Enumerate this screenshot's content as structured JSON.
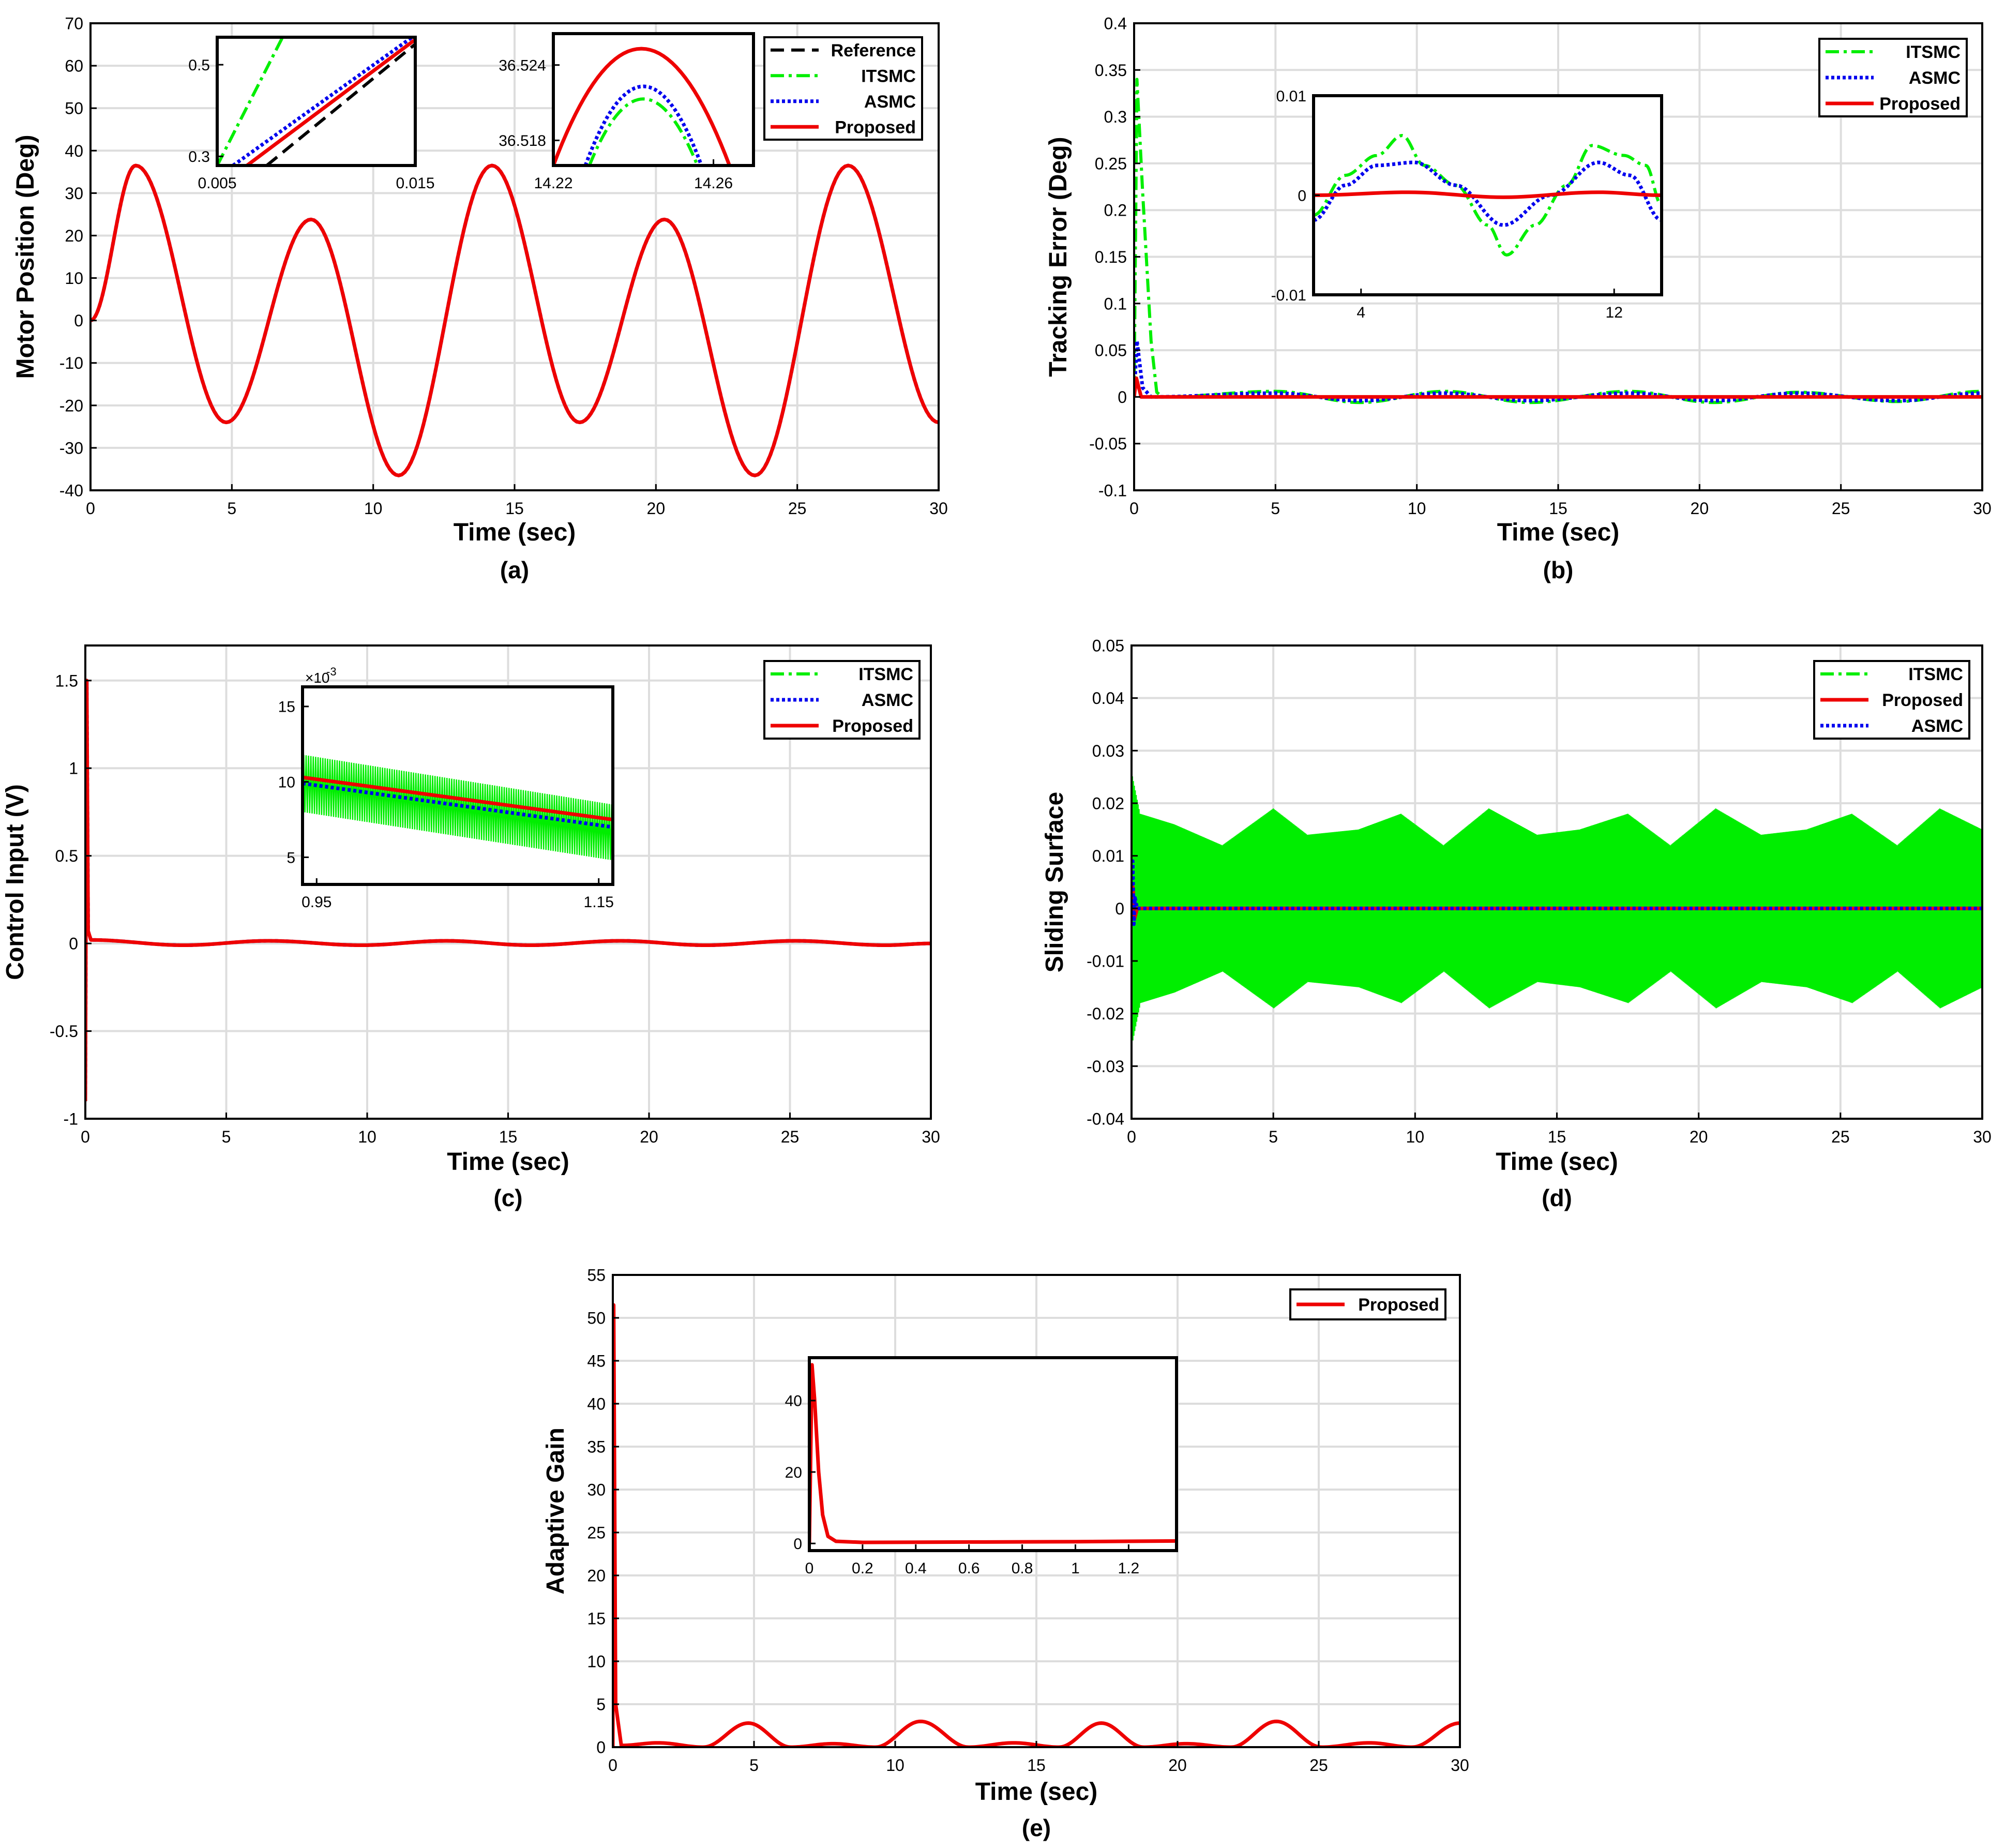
{
  "colors": {
    "reference": "#000000",
    "itsmc": "#00ee00",
    "asmc": "#0000ee",
    "proposed": "#ee0000",
    "grid": "#dddddd",
    "axes": "#000000"
  },
  "chart_data": [
    {
      "id": "a",
      "type": "line",
      "caption": "(a)",
      "xlabel": "Time (sec)",
      "ylabel": "Motor Position (Deg)",
      "xlim": [
        0,
        30
      ],
      "ylim": [
        -40,
        70
      ],
      "xticks": [
        "0",
        "5",
        "10",
        "15",
        "20",
        "25",
        "30"
      ],
      "yticks": [
        "-40",
        "-30",
        "-20",
        "-10",
        "0",
        "10",
        "20",
        "30",
        "40",
        "50",
        "60",
        "70"
      ],
      "grid": true,
      "legend_position": "top-right",
      "legend": [
        "Reference",
        "ITSMC",
        "ASMC",
        "Proposed"
      ],
      "series": [
        {
          "name": "Reference",
          "style": "dashed",
          "x": [
            0,
            1.6,
            4.8,
            7.8,
            10.9,
            14.2,
            17.3,
            20.3,
            23.5,
            26.8,
            30
          ],
          "y": [
            0,
            36.5,
            -24,
            23.8,
            -36.5,
            36.5,
            -24,
            23.8,
            -36.5,
            36.5,
            -24
          ]
        },
        {
          "name": "ITSMC",
          "style": "dashdot",
          "x": [
            0,
            1.6,
            4.8,
            7.8,
            10.9,
            14.2,
            17.3,
            20.3,
            23.5,
            26.8,
            30
          ],
          "y": [
            0,
            36.5,
            -24,
            23.8,
            -36.5,
            36.5,
            -24,
            23.8,
            -36.5,
            36.5,
            -24
          ]
        },
        {
          "name": "ASMC",
          "style": "dotted",
          "x": [
            0,
            1.6,
            4.8,
            7.8,
            10.9,
            14.2,
            17.3,
            20.3,
            23.5,
            26.8,
            30
          ],
          "y": [
            0,
            36.5,
            -24,
            23.8,
            -36.5,
            36.5,
            -24,
            23.8,
            -36.5,
            36.5,
            -24
          ]
        },
        {
          "name": "Proposed",
          "style": "solid",
          "x": [
            0,
            1.6,
            4.8,
            7.8,
            10.9,
            14.2,
            17.3,
            20.3,
            23.5,
            26.8,
            30
          ],
          "y": [
            0,
            36.5,
            -24,
            23.8,
            -36.5,
            36.5,
            -24,
            23.8,
            -36.5,
            36.5,
            -24
          ]
        }
      ],
      "insets": [
        {
          "xlim": [
            0.005,
            0.015
          ],
          "ylim": [
            0.28,
            0.56
          ],
          "xticks": [
            "0.005",
            "0.015"
          ],
          "yticks": [
            "0.3",
            "0.5"
          ],
          "series": [
            {
              "name": "Reference",
              "x": [
                0.0075,
                0.015
              ],
              "y": [
                0.28,
                0.545
              ]
            },
            {
              "name": "ITSMC",
              "x": [
                0.005,
                0.0083
              ],
              "y": [
                0.28,
                0.56
              ]
            },
            {
              "name": "ASMC",
              "x": [
                0.0058,
                0.015
              ],
              "y": [
                0.28,
                0.565
              ]
            },
            {
              "name": "Proposed",
              "x": [
                0.0065,
                0.015
              ],
              "y": [
                0.28,
                0.555
              ]
            }
          ]
        },
        {
          "xlim": [
            14.22,
            14.27
          ],
          "ylim": [
            36.516,
            36.5265
          ],
          "xticks": [
            "14.22",
            "14.26"
          ],
          "yticks": [
            "36.518",
            "36.524"
          ],
          "series": [
            {
              "name": "Reference",
              "x": [
                14.22,
                14.242,
                14.264
              ],
              "y": [
                36.516,
                36.5253,
                36.516
              ]
            },
            {
              "name": "ITSMC",
              "x": [
                14.229,
                14.2425,
                14.256
              ],
              "y": [
                36.516,
                36.5213,
                36.516
              ]
            },
            {
              "name": "ASMC",
              "x": [
                14.228,
                14.2425,
                14.257
              ],
              "y": [
                36.516,
                36.5223,
                36.516
              ]
            },
            {
              "name": "Proposed",
              "x": [
                14.22,
                14.242,
                14.264
              ],
              "y": [
                36.516,
                36.5253,
                36.516
              ]
            }
          ]
        }
      ]
    },
    {
      "id": "b",
      "type": "line",
      "caption": "(b)",
      "xlabel": "Time (sec)",
      "ylabel": "Tracking Error (Deg)",
      "xlim": [
        0,
        30
      ],
      "ylim": [
        -0.1,
        0.4
      ],
      "xticks": [
        "0",
        "5",
        "10",
        "15",
        "20",
        "25",
        "30"
      ],
      "yticks": [
        "-0.1",
        "-0.05",
        "0",
        "0.05",
        "0.1",
        "0.15",
        "0.2",
        "0.25",
        "0.3",
        "0.35",
        "0.4"
      ],
      "grid": true,
      "legend_position": "top-right",
      "legend": [
        "ITSMC",
        "ASMC",
        "Proposed"
      ],
      "series": [
        {
          "name": "ITSMC",
          "style": "dashdot",
          "x": [
            0,
            0.1,
            0.3,
            0.6,
            0.8,
            1.0,
            5,
            8,
            11,
            14,
            17.5,
            20.5,
            23.5,
            27,
            30
          ],
          "y": [
            0,
            0.34,
            0.22,
            0.06,
            0.005,
            0,
            0.006,
            -0.006,
            0.006,
            -0.006,
            0.006,
            -0.006,
            0.005,
            -0.005,
            0.006
          ]
        },
        {
          "name": "ASMC",
          "style": "dotted",
          "x": [
            0,
            0.1,
            0.3,
            0.6,
            5,
            8,
            11,
            14,
            17.5,
            20.5,
            23.5,
            27,
            30
          ],
          "y": [
            0,
            0.06,
            0.01,
            0,
            0.004,
            -0.004,
            0.004,
            -0.004,
            0.004,
            -0.004,
            0.004,
            -0.004,
            0.004
          ]
        },
        {
          "name": "Proposed",
          "style": "solid",
          "x": [
            0,
            0.08,
            0.25,
            1,
            30
          ],
          "y": [
            0,
            0.02,
            0,
            0,
            0
          ]
        }
      ],
      "insets": [
        {
          "xlim": [
            2.5,
            13.5
          ],
          "ylim": [
            -0.01,
            0.01
          ],
          "xticks": [
            "4",
            "12"
          ],
          "yticks": [
            "-0.01",
            "0",
            "0.01"
          ],
          "series": [
            {
              "name": "ITSMC",
              "x": [
                2.5,
                3.5,
                4.5,
                5.3,
                6.0,
                7.0,
                8.0,
                8.6,
                9.5,
                10.5,
                11.3,
                12.3,
                13.0,
                13.5
              ],
              "y": [
                -0.002,
                0.002,
                0.004,
                0.006,
                0.003,
                0.001,
                -0.003,
                -0.006,
                -0.003,
                0.001,
                0.005,
                0.004,
                0.003,
                -0.001
              ]
            },
            {
              "name": "ASMC",
              "x": [
                2.5,
                3.5,
                4.5,
                5.7,
                7.0,
                8.5,
                10.0,
                11.5,
                12.5,
                13.5
              ],
              "y": [
                -0.0025,
                0.001,
                0.003,
                0.0033,
                0.001,
                -0.003,
                0.0,
                0.0033,
                0.002,
                -0.0025
              ]
            },
            {
              "name": "Proposed",
              "x": [
                2.5,
                5.5,
                8.5,
                11.5,
                13.5
              ],
              "y": [
                0,
                0.0003,
                -0.0002,
                0.0003,
                0
              ]
            }
          ]
        }
      ]
    },
    {
      "id": "c",
      "type": "line",
      "caption": "(c)",
      "xlabel": "Time (sec)",
      "ylabel": "Control Input (V)",
      "xlim": [
        0,
        30
      ],
      "ylim": [
        -1,
        1.7
      ],
      "xticks": [
        "0",
        "5",
        "10",
        "15",
        "20",
        "25",
        "30"
      ],
      "yticks": [
        "-1",
        "-0.5",
        "0",
        "0.5",
        "1",
        "1.5"
      ],
      "grid": true,
      "legend_position": "top-right",
      "legend": [
        "ITSMC",
        "ASMC",
        "Proposed"
      ],
      "series": [
        {
          "name": "ITSMC",
          "style": "dashdot",
          "x": [
            0,
            0.05,
            0.1,
            0.2,
            3.5,
            6.5,
            9.8,
            12.8,
            15.8,
            19,
            22,
            25.2,
            28.4,
            30
          ],
          "y": [
            -0.9,
            1.5,
            0.07,
            0.02,
            -0.01,
            0.015,
            -0.01,
            0.015,
            -0.01,
            0.015,
            -0.01,
            0.015,
            -0.01,
            0.0
          ]
        },
        {
          "name": "ASMC",
          "style": "dotted",
          "x": [
            0,
            0.05,
            0.1,
            0.2,
            3.5,
            6.5,
            9.8,
            12.8,
            15.8,
            19,
            22,
            25.2,
            28.4,
            30
          ],
          "y": [
            -0.9,
            1.5,
            0.07,
            0.02,
            -0.01,
            0.015,
            -0.01,
            0.015,
            -0.01,
            0.015,
            -0.01,
            0.015,
            -0.01,
            0.0
          ]
        },
        {
          "name": "Proposed",
          "style": "solid",
          "x": [
            0,
            0.05,
            0.1,
            0.2,
            3.5,
            6.5,
            9.8,
            12.8,
            15.8,
            19,
            22,
            25.2,
            28.4,
            30
          ],
          "y": [
            -0.9,
            1.5,
            0.07,
            0.02,
            -0.01,
            0.015,
            -0.01,
            0.015,
            -0.01,
            0.015,
            -0.01,
            0.015,
            -0.01,
            0.0
          ]
        }
      ],
      "insets": [
        {
          "xlim": [
            0.94,
            1.16
          ],
          "ylim": [
            0.0032,
            0.0163
          ],
          "xticks": [
            "0.95",
            "1.15"
          ],
          "yticks": [
            "5",
            "10",
            "15"
          ],
          "multiplier": "×10",
          "multiplier_exp": "-3",
          "itsmc_band": {
            "x": [
              0.94,
              1.16
            ],
            "upper": [
              0.0118,
              0.0085
            ],
            "lower": [
              0.008,
              0.0048
            ]
          },
          "series": [
            {
              "name": "ASMC",
              "x": [
                0.94,
                1.16
              ],
              "y": [
                0.0099,
                0.007
              ]
            },
            {
              "name": "Proposed",
              "x": [
                0.94,
                1.16
              ],
              "y": [
                0.0103,
                0.0075
              ]
            }
          ]
        }
      ]
    },
    {
      "id": "d",
      "type": "line",
      "caption": "(d)",
      "xlabel": "Time (sec)",
      "ylabel": "Sliding Surface",
      "xlim": [
        0,
        30
      ],
      "ylim": [
        -0.04,
        0.05
      ],
      "xticks": [
        "0",
        "5",
        "10",
        "15",
        "20",
        "25",
        "30"
      ],
      "yticks": [
        "-0.04",
        "-0.03",
        "-0.02",
        "-0.01",
        "0",
        "0.01",
        "0.02",
        "0.03",
        "0.04",
        "0.05"
      ],
      "grid": true,
      "legend_position": "top-right",
      "legend": [
        "ITSMC",
        "Proposed",
        "ASMC"
      ],
      "itsmc_envelope": {
        "x": [
          0,
          0.3,
          1.5,
          3.2,
          5,
          6.2,
          8,
          9.5,
          11,
          12.6,
          14.3,
          15.8,
          17.5,
          19,
          20.6,
          22.2,
          23.8,
          25.4,
          27,
          28.5,
          30
        ],
        "upper": [
          0.026,
          0.018,
          0.016,
          0.012,
          0.019,
          0.014,
          0.015,
          0.018,
          0.012,
          0.019,
          0.014,
          0.015,
          0.018,
          0.012,
          0.019,
          0.014,
          0.015,
          0.018,
          0.012,
          0.019,
          0.015
        ],
        "lower": [
          -0.026,
          -0.018,
          -0.016,
          -0.012,
          -0.019,
          -0.014,
          -0.015,
          -0.018,
          -0.012,
          -0.019,
          -0.014,
          -0.015,
          -0.018,
          -0.012,
          -0.019,
          -0.014,
          -0.015,
          -0.018,
          -0.012,
          -0.019,
          -0.015
        ]
      },
      "series": [
        {
          "name": "Proposed",
          "style": "solid",
          "x": [
            0,
            0.05,
            0.1,
            0.2,
            30
          ],
          "y": [
            0,
            0.004,
            -0.002,
            0,
            0
          ]
        },
        {
          "name": "ASMC",
          "style": "dashdot",
          "x": [
            0,
            0.04,
            0.08,
            0.12,
            0.2,
            30
          ],
          "y": [
            0,
            0.009,
            -0.003,
            0.002,
            0,
            0
          ]
        }
      ]
    },
    {
      "id": "e",
      "type": "line",
      "caption": "(e)",
      "xlabel": "Time (sec)",
      "ylabel": "Adaptive Gain",
      "xlim": [
        0,
        30
      ],
      "ylim": [
        0,
        55
      ],
      "xticks": [
        "0",
        "5",
        "10",
        "15",
        "20",
        "25",
        "30"
      ],
      "yticks": [
        "0",
        "5",
        "10",
        "15",
        "20",
        "25",
        "30",
        "35",
        "40",
        "45",
        "50",
        "55"
      ],
      "grid": true,
      "legend_position": "top-right",
      "legend": [
        "Proposed"
      ],
      "series": [
        {
          "name": "Proposed",
          "style": "solid",
          "x": [
            0,
            0.03,
            0.1,
            0.3,
            1.6,
            3.2,
            4.8,
            6.3,
            7.8,
            9.3,
            10.9,
            12.6,
            14.2,
            15.8,
            17.3,
            18.8,
            20.3,
            21.9,
            23.5,
            25.1,
            26.8,
            28.3,
            30
          ],
          "y": [
            0,
            51.5,
            5,
            0.2,
            0.5,
            0,
            2.8,
            0,
            0.4,
            0,
            3.0,
            0,
            0.5,
            0,
            2.8,
            0,
            0.4,
            0,
            3.0,
            0,
            0.5,
            0,
            2.8
          ]
        }
      ],
      "insets": [
        {
          "xlim": [
            0,
            1.38
          ],
          "ylim": [
            -2,
            52
          ],
          "xticks": [
            "0",
            "0.2",
            "0.4",
            "0.6",
            "0.8",
            "1",
            "1.2"
          ],
          "yticks": [
            "0",
            "20",
            "40"
          ],
          "series": [
            {
              "name": "Proposed",
              "x": [
                0,
                0.01,
                0.02,
                0.035,
                0.05,
                0.07,
                0.1,
                0.2,
                0.6,
                1.0,
                1.38
              ],
              "y": [
                0,
                50,
                40,
                20,
                8,
                2,
                0.6,
                0.3,
                0.4,
                0.5,
                0.7
              ]
            }
          ]
        }
      ]
    }
  ]
}
